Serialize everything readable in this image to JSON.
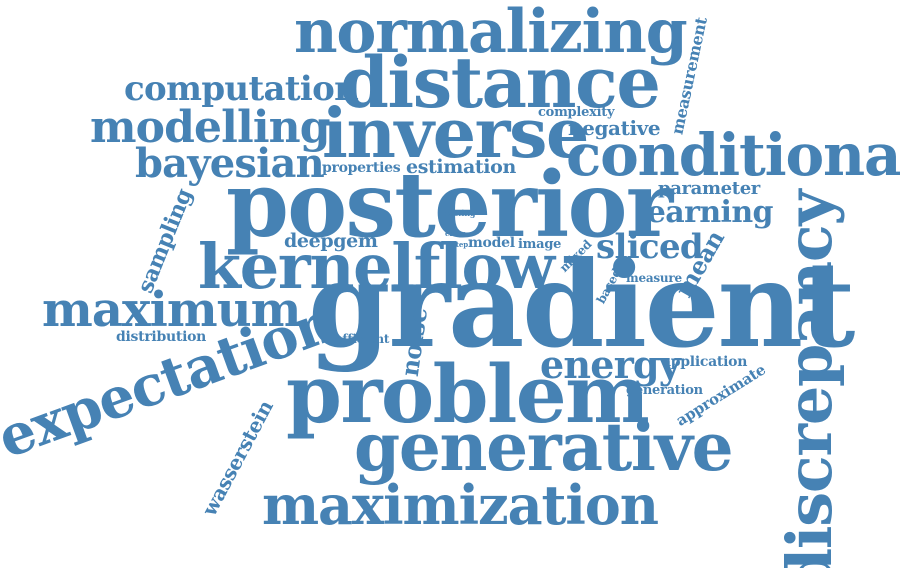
{
  "word_color": "#4682b4",
  "background_color": "#ffffff",
  "words": {
    "normalizing": "normalizing",
    "distance": "distance",
    "computation": "computation",
    "measurement": "measurement",
    "modelling": "modelling",
    "inverse": "inverse",
    "complexity": "complexity",
    "negative": "negative",
    "bayesian": "bayesian",
    "properties": "properties",
    "estimation": "estimation",
    "conditional": "conditional",
    "posterior": "posterior",
    "parameter": "parameter",
    "learning": "learning",
    "sampling": "sampling",
    "setting": "setting",
    "error": "error",
    "step": "step",
    "deepgem": "deepgem",
    "model": "model",
    "image": "image",
    "mixed": "mixed",
    "sliced": "sliced",
    "kernelflow": "kernelflow",
    "mean": "mean",
    "result": "result",
    "based": "based",
    "measure": "measure",
    "maximum": "maximum",
    "gradient": "gradient",
    "distribution": "distribution",
    "efficient": "efficient",
    "noise": "noise",
    "discrepancy": "discrepancy",
    "expectation": "expectation",
    "energy": "energy",
    "application": "application",
    "approximate": "approximate",
    "generation": "generation",
    "problem": "problem",
    "wasserstein": "wasserstein",
    "generative": "generative",
    "maximization": "maximization"
  }
}
